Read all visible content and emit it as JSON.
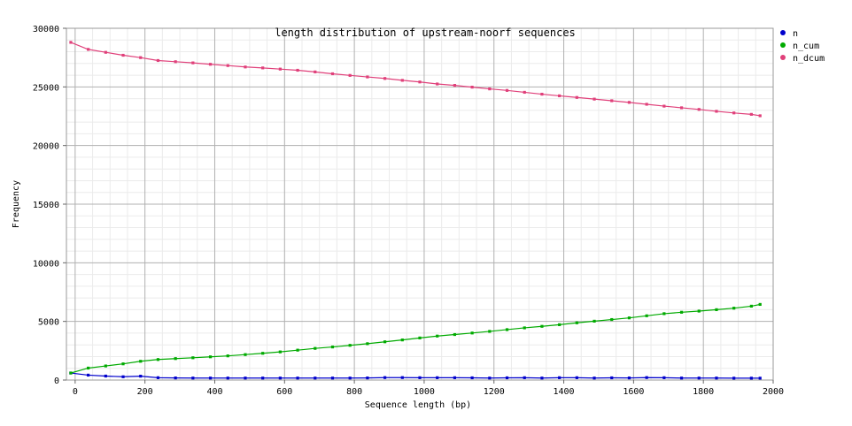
{
  "chart_data": {
    "type": "line",
    "title": "length distribution of upstream-noorf sequences",
    "xlabel": "Sequence length (bp)",
    "ylabel": "Frequency",
    "xlim": [
      -25,
      2000
    ],
    "ylim": [
      0,
      30000
    ],
    "xticks": [
      0,
      200,
      400,
      600,
      800,
      1000,
      1200,
      1400,
      1600,
      1800,
      2000
    ],
    "yticks": [
      0,
      5000,
      10000,
      15000,
      20000,
      25000,
      30000
    ],
    "xtick_labels": [
      "0",
      "200",
      "400",
      "600",
      "800",
      "1000",
      "1200",
      "1400",
      "1600",
      "1800",
      "2000"
    ],
    "ytick_labels": [
      "0",
      "5000",
      "10000",
      "15000",
      "20000",
      "25000",
      "30000"
    ],
    "grid": true,
    "legend_position": "right",
    "x": [
      -12.5,
      37.5,
      87.5,
      137.5,
      187.5,
      237.5,
      287.5,
      337.5,
      387.5,
      437.5,
      487.5,
      537.5,
      587.5,
      637.5,
      687.5,
      737.5,
      787.5,
      837.5,
      887.5,
      937.5,
      987.5,
      1037.5,
      1087.5,
      1137.5,
      1187.5,
      1237.5,
      1287.5,
      1337.5,
      1387.5,
      1437.5,
      1487.5,
      1537.5,
      1587.5,
      1637.5,
      1687.5,
      1737.5,
      1787.5,
      1837.5,
      1887.5,
      1937.5,
      1962.5
    ],
    "series": [
      {
        "name": "n",
        "color": "#0000cc",
        "values": [
          600,
          420,
          340,
          280,
          330,
          200,
          180,
          170,
          170,
          170,
          170,
          170,
          170,
          170,
          170,
          170,
          170,
          180,
          210,
          210,
          200,
          200,
          200,
          190,
          170,
          190,
          200,
          170,
          200,
          200,
          170,
          190,
          180,
          210,
          200,
          170,
          170,
          170,
          160,
          160,
          160
        ]
      },
      {
        "name": "n_cum",
        "color": "#00aa00",
        "values": [
          600,
          1020,
          1200,
          1380,
          1600,
          1750,
          1830,
          1900,
          1980,
          2060,
          2170,
          2280,
          2400,
          2550,
          2700,
          2820,
          2960,
          3100,
          3260,
          3420,
          3590,
          3750,
          3880,
          4010,
          4150,
          4300,
          4450,
          4580,
          4720,
          4880,
          5020,
          5160,
          5300,
          5480,
          5660,
          5780,
          5880,
          6000,
          6130,
          6300,
          6450
        ]
      },
      {
        "name": "n_dcum",
        "color": "#e0407a",
        "values": [
          28800,
          28200,
          27950,
          27700,
          27500,
          27250,
          27150,
          27050,
          26930,
          26820,
          26700,
          26620,
          26520,
          26420,
          26280,
          26120,
          25980,
          25850,
          25720,
          25560,
          25420,
          25250,
          25130,
          24980,
          24830,
          24700,
          24540,
          24380,
          24240,
          24100,
          23960,
          23820,
          23680,
          23520,
          23360,
          23220,
          23080,
          22920,
          22780,
          22660,
          22540
        ]
      }
    ]
  }
}
